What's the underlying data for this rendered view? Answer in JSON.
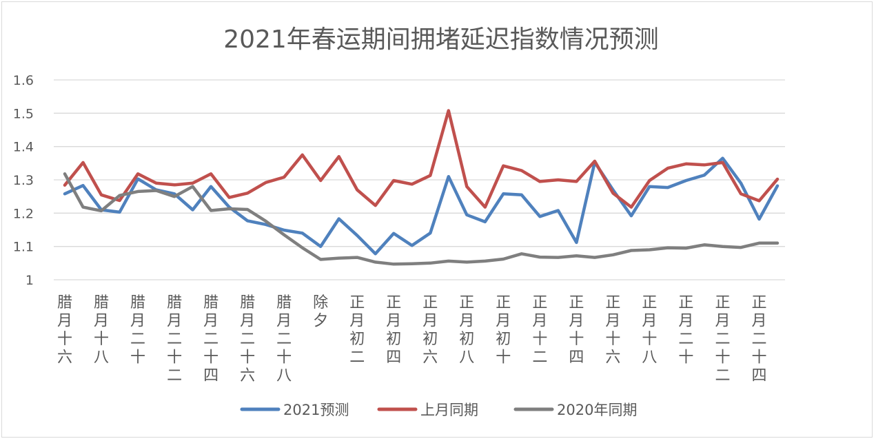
{
  "chart_data": {
    "type": "line",
    "title": "2021年春运期间拥堵延迟指数情况预测",
    "xlabel": "",
    "ylabel": "",
    "ylim": [
      1,
      1.6
    ],
    "yticks": [
      "1",
      "1.1",
      "1.2",
      "1.3",
      "1.4",
      "1.5",
      "1.6"
    ],
    "grid": true,
    "legend_position": "bottom",
    "category_labels": [
      "腊月十六",
      "腊月十八",
      "腊月二十",
      "腊月二十二",
      "腊月二十四",
      "腊月二十六",
      "腊月二十八",
      "除夕",
      "正月初二",
      "正月初四",
      "正月初六",
      "正月初八",
      "正月初十",
      "正月十二",
      "正月十四",
      "正月十六",
      "正月十八",
      "正月二十",
      "正月二十二",
      "正月二十四"
    ],
    "series": [
      {
        "name": "2021预测",
        "color": "#4f81bd",
        "values": [
          1.258,
          1.283,
          1.21,
          1.203,
          1.303,
          1.27,
          1.258,
          1.21,
          1.28,
          1.218,
          1.177,
          1.166,
          1.149,
          1.14,
          1.1,
          1.183,
          1.133,
          1.078,
          1.139,
          1.103,
          1.14,
          1.31,
          1.195,
          1.174,
          1.258,
          1.255,
          1.19,
          1.208,
          1.112,
          1.353,
          1.27,
          1.192,
          1.28,
          1.277,
          1.298,
          1.314,
          1.365,
          1.29,
          1.182,
          1.282
        ]
      },
      {
        "name": "上月同期",
        "color": "#c0504d",
        "values": [
          1.284,
          1.352,
          1.255,
          1.238,
          1.318,
          1.29,
          1.285,
          1.29,
          1.318,
          1.247,
          1.26,
          1.292,
          1.308,
          1.375,
          1.298,
          1.37,
          1.27,
          1.223,
          1.298,
          1.287,
          1.313,
          1.508,
          1.28,
          1.218,
          1.342,
          1.328,
          1.295,
          1.3,
          1.295,
          1.356,
          1.26,
          1.218,
          1.298,
          1.335,
          1.348,
          1.345,
          1.352,
          1.258,
          1.237,
          1.302
        ]
      },
      {
        "name": "2020年同期",
        "color": "#7f7f7f",
        "values": [
          1.318,
          1.218,
          1.207,
          1.253,
          1.265,
          1.268,
          1.25,
          1.28,
          1.208,
          1.213,
          1.211,
          1.176,
          1.135,
          1.096,
          1.061,
          1.065,
          1.067,
          1.053,
          1.047,
          1.048,
          1.05,
          1.056,
          1.053,
          1.056,
          1.062,
          1.078,
          1.068,
          1.067,
          1.072,
          1.067,
          1.075,
          1.088,
          1.09,
          1.096,
          1.095,
          1.105,
          1.1,
          1.097,
          1.11,
          1.11
        ]
      }
    ]
  }
}
